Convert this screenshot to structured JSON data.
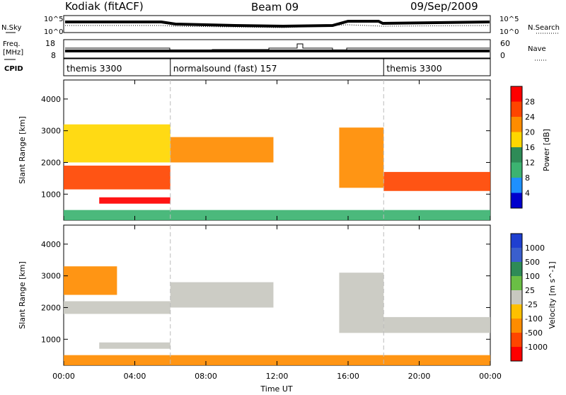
{
  "header": {
    "title": "Kodiak (fitACF)",
    "beam": "Beam 09",
    "date": "09/Sep/2009"
  },
  "noise_panel": {
    "left_label": "N.Sky",
    "right_label": "N.Search",
    "left_ticks": [
      "10^5",
      "10^0"
    ],
    "right_ticks": [
      "10^5",
      "10^0"
    ]
  },
  "freq_panel": {
    "left_label_1": "Freq.",
    "left_label_2": "[MHz]",
    "right_label": "Nave",
    "left_ticks": [
      "18",
      "8"
    ],
    "right_ticks": [
      "60",
      "0"
    ]
  },
  "cpid_panel": {
    "label": "CPID",
    "segments": [
      {
        "start_h": 0,
        "end_h": 6,
        "text": "themis 3300"
      },
      {
        "start_h": 6,
        "end_h": 18,
        "text": "normalsound (fast) 157"
      },
      {
        "start_h": 18,
        "end_h": 24,
        "text": "themis 3300"
      }
    ]
  },
  "power_panel": {
    "ylabel": "Slant Range [km]",
    "colorbar_title": "Power [dB]",
    "colorbar_ticks": [
      "28",
      "24",
      "20",
      "16",
      "12",
      "8",
      "4"
    ],
    "colorbar_colors": [
      "#ff0000",
      "#ff4500",
      "#ff8c00",
      "#ffd700",
      "#2e8b57",
      "#3cb371",
      "#1e90ff",
      "#0000cd"
    ]
  },
  "velocity_panel": {
    "ylabel": "Slant Range [km]",
    "colorbar_title": "Velocity [m s^-1]",
    "colorbar_ticks": [
      "1000",
      "500",
      "100",
      "25",
      "-25",
      "-100",
      "-500",
      "-1000"
    ],
    "colorbar_colors": [
      "#1e3fd0",
      "#3a5fcd",
      "#2e8b57",
      "#6abe45",
      "#c8c8c0",
      "#ffc000",
      "#ff8c00",
      "#ff4500",
      "#ff0000"
    ]
  },
  "x_axis": {
    "label": "Time UT",
    "ticks": [
      "00:00",
      "04:00",
      "08:00",
      "12:00",
      "16:00",
      "20:00",
      "00:00"
    ]
  },
  "y_axis": {
    "ticks": [
      "1000",
      "2000",
      "3000",
      "4000"
    ]
  },
  "chart_data": [
    {
      "type": "heatmap",
      "name": "power",
      "x_range_h": [
        0,
        24
      ],
      "ylim": [
        180,
        4600
      ],
      "y_ticks": [
        1000,
        2000,
        3000,
        4000
      ],
      "regions": [
        {
          "t0": 0,
          "t1": 6,
          "r0": 1150,
          "r1": 1900,
          "value": 24
        },
        {
          "t0": 0,
          "t1": 6,
          "r0": 2000,
          "r1": 3200,
          "value": 18
        },
        {
          "t0": 2,
          "t1": 6,
          "r0": 700,
          "r1": 900,
          "value": 30
        },
        {
          "t0": 6,
          "t1": 11.8,
          "r0": 2000,
          "r1": 2800,
          "value": 20
        },
        {
          "t0": 15.5,
          "t1": 18,
          "r0": 1200,
          "r1": 3100,
          "value": 22
        },
        {
          "t0": 18,
          "t1": 24,
          "r0": 1100,
          "r1": 1700,
          "value": 26
        },
        {
          "t0": 0,
          "t1": 24,
          "r0": 180,
          "r1": 500,
          "value": 8
        }
      ]
    },
    {
      "type": "heatmap",
      "name": "velocity",
      "x_range_h": [
        0,
        24
      ],
      "ylim": [
        180,
        4600
      ],
      "y_ticks": [
        1000,
        2000,
        3000,
        4000
      ],
      "regions": [
        {
          "t0": 0,
          "t1": 3,
          "r0": 2400,
          "r1": 3300,
          "value": -100
        },
        {
          "t0": 0,
          "t1": 6,
          "r0": 1800,
          "r1": 2200,
          "value": 0
        },
        {
          "t0": 2,
          "t1": 6,
          "r0": 700,
          "r1": 900,
          "value": 0
        },
        {
          "t0": 6,
          "t1": 11.8,
          "r0": 2000,
          "r1": 2800,
          "value": 0
        },
        {
          "t0": 15.5,
          "t1": 18,
          "r0": 1200,
          "r1": 3100,
          "value": 0
        },
        {
          "t0": 18,
          "t1": 24,
          "r0": 1200,
          "r1": 1700,
          "value": 0
        },
        {
          "t0": 0,
          "t1": 24,
          "r0": 180,
          "r1": 500,
          "value": -100
        }
      ]
    }
  ]
}
